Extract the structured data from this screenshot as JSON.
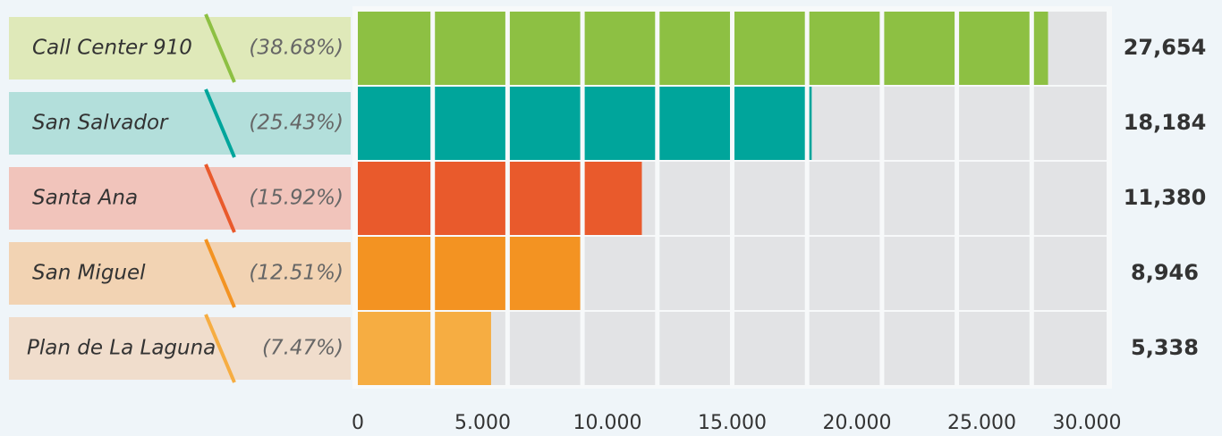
{
  "chart_data": {
    "type": "bar",
    "orientation": "horizontal",
    "categories": [
      "Call Center 910",
      "San Salvador",
      "Santa Ana",
      "San Miguel",
      "Plan de La Laguna"
    ],
    "shares": [
      38.68,
      25.43,
      15.92,
      12.51,
      7.47
    ],
    "share_labels": [
      "(38.68%)",
      "(25.43%)",
      "(15.92%)",
      "(12.51%)",
      "(7.47%)"
    ],
    "values": [
      27654,
      18184,
      11380,
      8946,
      5338
    ],
    "value_labels": [
      "27,654",
      "18,184",
      "11,380",
      "8,946",
      "5,338"
    ],
    "colors": [
      "#8dc043",
      "#00a59b",
      "#e95a2c",
      "#f39322",
      "#f6ad42"
    ],
    "label_backgrounds": [
      "#dfe9b9",
      "#b3dfdb",
      "#f1c4bb",
      "#f2d3b3",
      "#f0ddcc"
    ],
    "xlim": [
      0,
      30000
    ],
    "xticks": [
      0,
      {
        "value": 5000,
        "label": "5.000"
      },
      {
        "value": 10000,
        "label": "10.000"
      },
      {
        "value": 15000,
        "label": "15.000"
      },
      {
        "value": 20000,
        "label": "20.000"
      },
      {
        "value": 25000,
        "label": "25.000"
      },
      {
        "value": 30000,
        "label": "30.000"
      }
    ]
  }
}
